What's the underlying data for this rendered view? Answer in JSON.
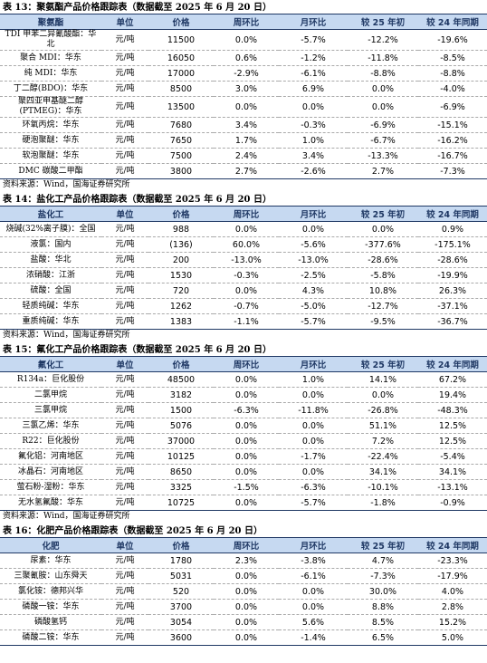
{
  "tables": [
    {
      "title": "表 13：聚氨酯产品价格跟踪表（数据截至 2025 年 6 月 20 日）",
      "header": [
        "聚氨酯",
        "单位",
        "价格",
        "周环比",
        "月环比",
        "较 25 年初",
        "较 24 年同期"
      ],
      "rows": [
        [
          "TDI 甲苯二异氰酸酯：华北",
          "元/吨",
          "11500",
          "0.0%",
          "-5.7%",
          "-12.2%",
          "-19.6%"
        ],
        [
          "聚合 MDI：华东",
          "元/吨",
          "16050",
          "0.6%",
          "-1.2%",
          "-11.8%",
          "-8.5%"
        ],
        [
          "纯 MDI：华东",
          "元/吨",
          "17000",
          "-2.9%",
          "-6.1%",
          "-8.8%",
          "-8.8%"
        ],
        [
          "丁二醇(BDO)：华东",
          "元/吨",
          "8500",
          "3.0%",
          "6.9%",
          "0.0%",
          "-4.0%"
        ],
        [
          "聚四亚甲基醚二醇(PTMEG)：华东",
          "元/吨",
          "13500",
          "0.0%",
          "0.0%",
          "0.0%",
          "-6.9%"
        ],
        [
          "环氧丙烷：华东",
          "元/吨",
          "7680",
          "3.4%",
          "-0.3%",
          "-6.9%",
          "-15.1%"
        ],
        [
          "硬泡聚醚：华东",
          "元/吨",
          "7650",
          "1.7%",
          "1.0%",
          "-6.7%",
          "-16.2%"
        ],
        [
          "软泡聚醚：华东",
          "元/吨",
          "7500",
          "2.4%",
          "3.4%",
          "-13.3%",
          "-16.7%"
        ],
        [
          "DMC 碳酸二甲酯",
          "元/吨",
          "3800",
          "2.7%",
          "-2.6%",
          "2.7%",
          "-7.3%"
        ]
      ],
      "source": "资料来源：Wind，国海证券研究所"
    },
    {
      "title": "表 14：盐化工产品价格跟踪表（数据截至 2025 年 6 月 20 日）",
      "header": [
        "盐化工",
        "单位",
        "价格",
        "周环比",
        "月环比",
        "较 25 年初",
        "较 24 年同期"
      ],
      "rows": [
        [
          "烧碱(32%离子膜)：全国",
          "元/吨",
          "988",
          "0.0%",
          "0.0%",
          "0.0%",
          "0.9%"
        ],
        [
          "液氯：国内",
          "元/吨",
          "(136)",
          "60.0%",
          "-5.6%",
          "-377.6%",
          "-175.1%"
        ],
        [
          "盐酸：华北",
          "元/吨",
          "200",
          "-13.0%",
          "-13.0%",
          "-28.6%",
          "-28.6%"
        ],
        [
          "浓硝酸：江浙",
          "元/吨",
          "1530",
          "-0.3%",
          "-2.5%",
          "-5.8%",
          "-19.9%"
        ],
        [
          "硫酸：全国",
          "元/吨",
          "720",
          "0.0%",
          "4.3%",
          "10.8%",
          "26.3%"
        ],
        [
          "轻质纯碱：华东",
          "元/吨",
          "1262",
          "-0.7%",
          "-5.0%",
          "-12.7%",
          "-37.1%"
        ],
        [
          "重质纯碱：华东",
          "元/吨",
          "1383",
          "-1.1%",
          "-5.7%",
          "-9.5%",
          "-36.7%"
        ]
      ],
      "source": "资料来源：Wind，国海证券研究所"
    },
    {
      "title": "表 15：氟化工产品价格跟踪表（数据截至 2025 年 6 月 20 日）",
      "header": [
        "氟化工",
        "单位",
        "价格",
        "周环比",
        "月环比",
        "较 25 年初",
        "较 24 年同期"
      ],
      "rows": [
        [
          "R134a：巨化股份",
          "元/吨",
          "48500",
          "0.0%",
          "1.0%",
          "14.1%",
          "67.2%"
        ],
        [
          "二氯甲烷",
          "元/吨",
          "3182",
          "0.0%",
          "0.0%",
          "0.0%",
          "19.4%"
        ],
        [
          "三氯甲烷",
          "元/吨",
          "1500",
          "-6.3%",
          "-11.8%",
          "-26.8%",
          "-48.3%"
        ],
        [
          "三氯乙烯：华东",
          "元/吨",
          "5076",
          "0.0%",
          "0.0%",
          "51.1%",
          "12.5%"
        ],
        [
          "R22：巨化股份",
          "元/吨",
          "37000",
          "0.0%",
          "0.0%",
          "7.2%",
          "12.5%"
        ],
        [
          "氟化铝：河南地区",
          "元/吨",
          "10125",
          "0.0%",
          "-1.7%",
          "-22.4%",
          "-5.4%"
        ],
        [
          "冰晶石：河南地区",
          "元/吨",
          "8650",
          "0.0%",
          "0.0%",
          "34.1%",
          "34.1%"
        ],
        [
          "萤石粉-湿粉：华东",
          "元/吨",
          "3325",
          "-1.5%",
          "-6.3%",
          "-10.1%",
          "-13.1%"
        ],
        [
          "无水氢氟酸：华东",
          "元/吨",
          "10725",
          "0.0%",
          "-5.7%",
          "-1.8%",
          "-0.9%"
        ]
      ],
      "source": "资料来源：Wind，国海证券研究所"
    },
    {
      "title": "表 16：化肥产品价格跟踪表（数据截至 2025 年 6 月 20 日）",
      "header": [
        "化肥",
        "单位",
        "价格",
        "周环比",
        "月环比",
        "较 25 年初",
        "较 24 年同期"
      ],
      "rows": [
        [
          "尿素：华东",
          "元/吨",
          "1780",
          "2.3%",
          "-3.8%",
          "4.7%",
          "-23.3%"
        ],
        [
          "三聚氰胺：山东舜天",
          "元/吨",
          "5031",
          "0.0%",
          "-6.1%",
          "-7.3%",
          "-17.9%"
        ],
        [
          "氯化铵：德邦兴华",
          "元/吨",
          "520",
          "0.0%",
          "0.0%",
          "30.0%",
          "4.0%"
        ],
        [
          "磷酸一铵：华东",
          "元/吨",
          "3700",
          "0.0%",
          "0.0%",
          "8.8%",
          "2.8%"
        ],
        [
          "磷酸氢钙",
          "元/吨",
          "3054",
          "0.0%",
          "5.6%",
          "8.5%",
          "15.2%"
        ],
        [
          "磷酸二铵：华东",
          "元/吨",
          "3600",
          "0.0%",
          "-1.4%",
          "6.5%",
          "5.0%"
        ]
      ]
    }
  ]
}
